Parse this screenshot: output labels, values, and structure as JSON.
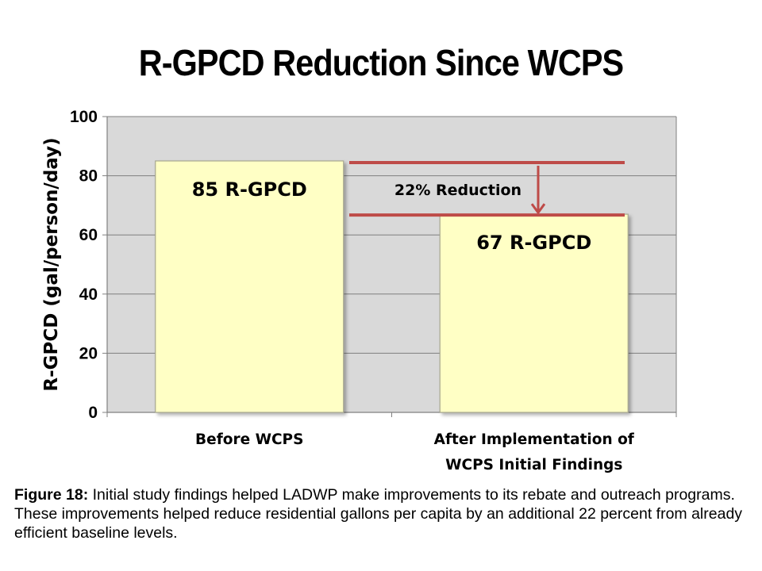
{
  "title": "R-GPCD Reduction Since WCPS",
  "chart_data": {
    "type": "bar",
    "title": "R-GPCD Reduction Since WCPS",
    "categories": [
      [
        "Before WCPS"
      ],
      [
        "After Implementation of",
        "WCPS Initial Findings"
      ]
    ],
    "values": [
      85,
      67
    ],
    "data_labels": [
      "85 R-GPCD",
      "67 R-GPCD"
    ],
    "ylabel": "R-GPCD (gal/person/day)",
    "xlabel": "",
    "ylim": [
      0,
      100
    ],
    "yticks": [
      0,
      20,
      40,
      60,
      80,
      100
    ],
    "grid": true,
    "annotation": {
      "text": "22% Reduction",
      "from_value": 85,
      "to_value": 67
    },
    "colors": {
      "bar_fill": "#FFFFC5",
      "bar_stroke": "#A8A890",
      "plot_bg": "#D9D9D9",
      "annotation": "#BE4B48"
    }
  },
  "caption": {
    "lead": "Figure 18:",
    "text": " Initial study findings helped LADWP make improvements to its rebate and outreach programs. These improvements helped reduce residential gallons per capita by an additional 22 percent from already efficient baseline levels."
  }
}
